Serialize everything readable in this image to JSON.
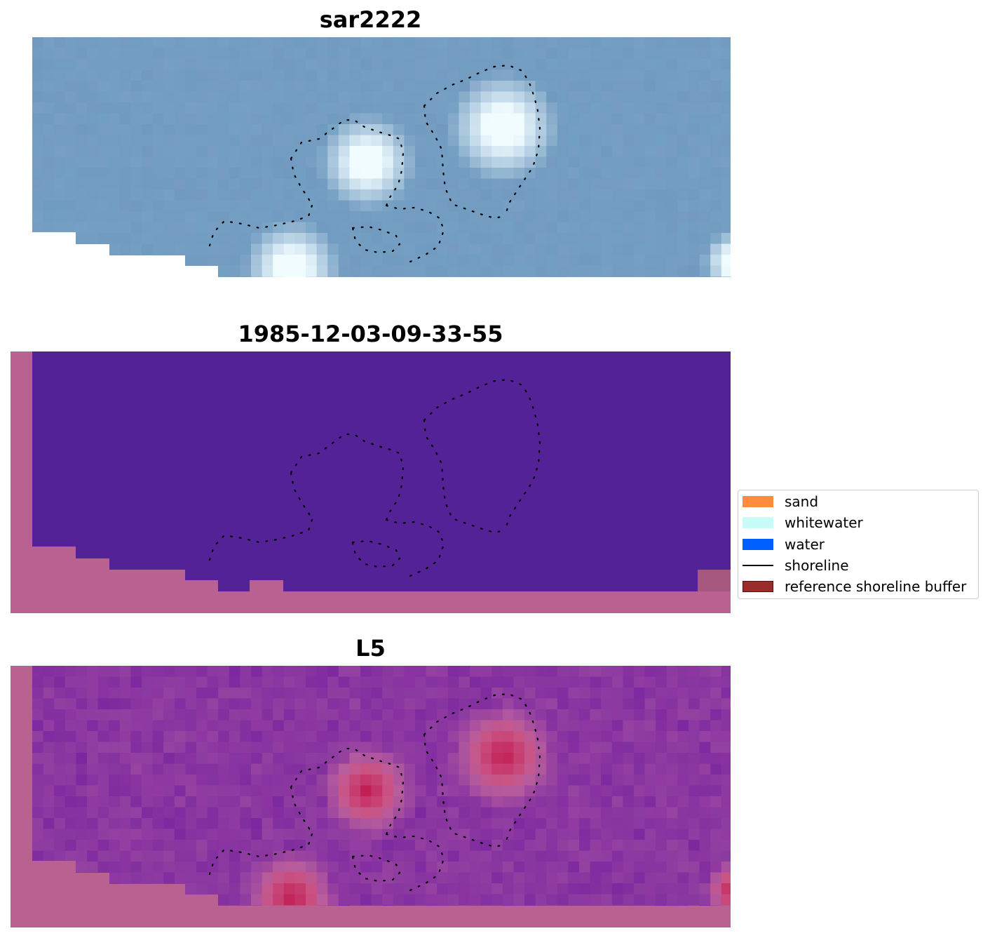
{
  "panels": [
    {
      "title": "sar2222"
    },
    {
      "title": "1985-12-03-09-33-55"
    },
    {
      "title": "L5"
    }
  ],
  "colors": {
    "sar_base": "#6f9bbf",
    "class_water_overlay": "#532297",
    "masked_pink": "#b96291",
    "l5_base": "#8a3aa0",
    "bright_core": "#c1134a"
  },
  "legend": {
    "items": [
      {
        "label": "sand",
        "color": "#ff8c3c",
        "kind": "patch"
      },
      {
        "label": "whitewater",
        "color": "#c8fcf8",
        "kind": "patch"
      },
      {
        "label": "water",
        "color": "#0060ff",
        "kind": "patch"
      },
      {
        "label": "shoreline",
        "color": "#000000",
        "kind": "line"
      },
      {
        "label": "reference shoreline buffer",
        "color": "#9b2c2c",
        "kind": "patch"
      }
    ]
  }
}
